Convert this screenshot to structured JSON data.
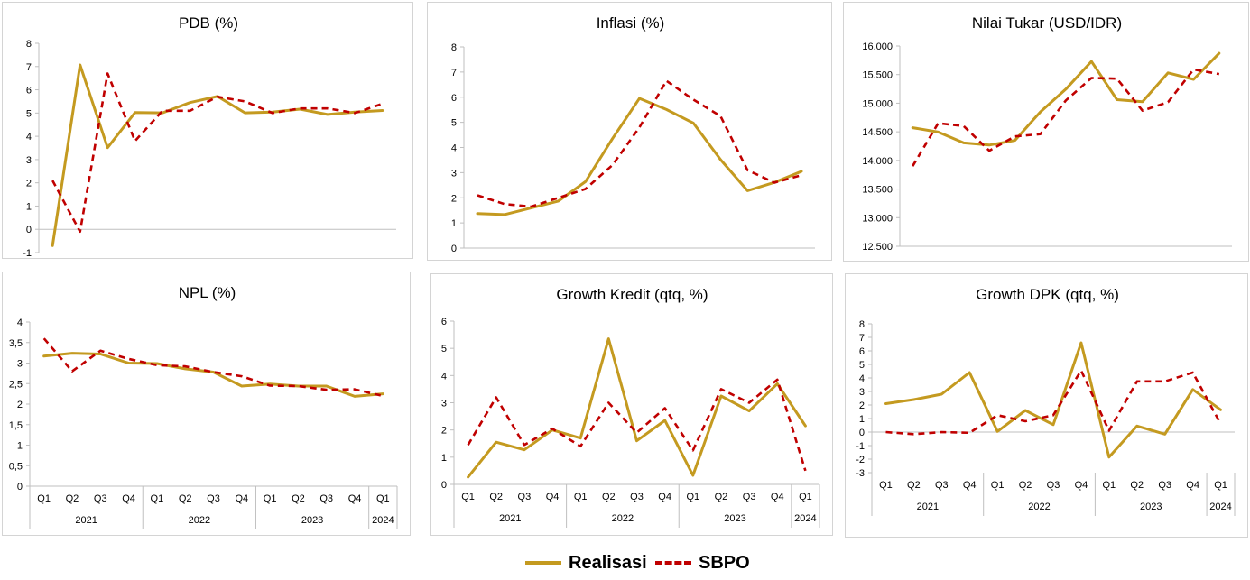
{
  "colors": {
    "realisasi": "#c49a20",
    "sbpo": "#c00000",
    "axis": "#bfbfbf",
    "text": "#000000"
  },
  "legend": {
    "realisasi": "Realisasi",
    "sbpo": "SBPO"
  },
  "chart_data": [
    {
      "id": "pdb",
      "type": "line",
      "title": "PDB (%)",
      "ylim": [
        -1,
        8
      ],
      "yticks": [
        -1,
        0,
        1,
        2,
        3,
        4,
        5,
        6,
        7,
        8
      ],
      "ytick_labels": [
        "-1",
        "0",
        "1",
        "2",
        "3",
        "4",
        "5",
        "6",
        "7",
        "8"
      ],
      "x_categories": [],
      "year_groups": [],
      "series": [
        {
          "name": "Realisasi",
          "values": [
            -0.7,
            7.07,
            3.51,
            5.02,
            5.01,
            5.45,
            5.72,
            5.01,
            5.04,
            5.17,
            4.94,
            5.04,
            5.11
          ]
        },
        {
          "name": "SBPO",
          "values": [
            2.1,
            -0.1,
            6.7,
            3.8,
            5.1,
            5.1,
            5.7,
            5.5,
            5.0,
            5.2,
            5.2,
            5.0,
            5.4
          ]
        }
      ]
    },
    {
      "id": "inflasi",
      "type": "line",
      "title": "Inflasi (%)",
      "ylim": [
        0,
        8
      ],
      "yticks": [
        0,
        1,
        2,
        3,
        4,
        5,
        6,
        7,
        8
      ],
      "ytick_labels": [
        "0",
        "1",
        "2",
        "3",
        "4",
        "5",
        "6",
        "7",
        "8"
      ],
      "x_categories": [],
      "year_groups": [],
      "series": [
        {
          "name": "Realisasi",
          "values": [
            1.37,
            1.33,
            1.6,
            1.87,
            2.64,
            4.35,
            5.95,
            5.51,
            4.97,
            3.52,
            2.28,
            2.61,
            3.05
          ]
        },
        {
          "name": "SBPO",
          "values": [
            2.1,
            1.75,
            1.65,
            2.0,
            2.35,
            3.3,
            4.8,
            6.65,
            5.9,
            5.25,
            3.1,
            2.6,
            2.9
          ]
        }
      ]
    },
    {
      "id": "nilai-tukar",
      "type": "line",
      "title": "Nilai Tukar (USD/IDR)",
      "ylim": [
        12500,
        16000
      ],
      "yticks": [
        12500,
        13000,
        13500,
        14000,
        14500,
        15000,
        15500,
        16000
      ],
      "ytick_labels": [
        "12.500",
        "13.000",
        "13.500",
        "14.000",
        "14.500",
        "15.000",
        "15.500",
        "16.000"
      ],
      "x_categories": [],
      "year_groups": [],
      "series": [
        {
          "name": "Realisasi",
          "values": [
            14572,
            14496,
            14307,
            14269,
            14349,
            14848,
            15247,
            15731,
            15062,
            15026,
            15530,
            15416,
            15873
          ]
        },
        {
          "name": "SBPO",
          "values": [
            13900,
            14650,
            14600,
            14170,
            14420,
            14460,
            15050,
            15440,
            15430,
            14870,
            15020,
            15590,
            15510
          ]
        }
      ]
    },
    {
      "id": "npl",
      "type": "line",
      "title": "NPL (%)",
      "ylim": [
        0,
        4
      ],
      "yticks": [
        0,
        0.5,
        1,
        1.5,
        2,
        2.5,
        3,
        3.5,
        4
      ],
      "ytick_labels": [
        "0",
        "0,5",
        "1",
        "1,5",
        "2",
        "2,5",
        "3",
        "3,5",
        "4"
      ],
      "x_categories": [
        "Q1",
        "Q2",
        "Q3",
        "Q4",
        "Q1",
        "Q2",
        "Q3",
        "Q4",
        "Q1",
        "Q2",
        "Q3",
        "Q4",
        "Q1"
      ],
      "year_groups": [
        {
          "label": "2021",
          "span": 4
        },
        {
          "label": "2022",
          "span": 4
        },
        {
          "label": "2023",
          "span": 4
        },
        {
          "label": "2024",
          "span": 1
        }
      ],
      "series": [
        {
          "name": "Realisasi",
          "values": [
            3.17,
            3.24,
            3.22,
            3.0,
            2.99,
            2.86,
            2.78,
            2.44,
            2.49,
            2.44,
            2.44,
            2.19,
            2.25
          ]
        },
        {
          "name": "SBPO",
          "values": [
            3.6,
            2.8,
            3.3,
            3.1,
            2.95,
            2.92,
            2.78,
            2.68,
            2.45,
            2.44,
            2.35,
            2.36,
            2.2
          ]
        }
      ]
    },
    {
      "id": "growth-kredit",
      "type": "line",
      "title": "Growth Kredit (qtq, %)",
      "ylim": [
        0,
        6
      ],
      "yticks": [
        0,
        1,
        2,
        3,
        4,
        5,
        6
      ],
      "ytick_labels": [
        "0",
        "1",
        "2",
        "3",
        "4",
        "5",
        "6"
      ],
      "x_categories": [
        "Q1",
        "Q2",
        "Q3",
        "Q4",
        "Q1",
        "Q2",
        "Q3",
        "Q4",
        "Q1",
        "Q2",
        "Q3",
        "Q4",
        "Q1"
      ],
      "year_groups": [
        {
          "label": "2021",
          "span": 4
        },
        {
          "label": "2022",
          "span": 4
        },
        {
          "label": "2023",
          "span": 4
        },
        {
          "label": "2024",
          "span": 1
        }
      ],
      "series": [
        {
          "name": "Realisasi",
          "values": [
            0.27,
            1.55,
            1.27,
            2.0,
            1.7,
            5.35,
            1.6,
            2.35,
            0.33,
            3.25,
            2.7,
            3.7,
            2.15
          ]
        },
        {
          "name": "SBPO",
          "values": [
            1.45,
            3.2,
            1.45,
            2.05,
            1.4,
            3.0,
            1.9,
            2.8,
            1.25,
            3.5,
            3.0,
            3.85,
            0.5
          ]
        }
      ]
    },
    {
      "id": "growth-dpk",
      "type": "line",
      "title": "Growth DPK (qtq, %)",
      "ylim": [
        -3,
        8
      ],
      "yticks": [
        -3,
        -2,
        -1,
        0,
        1,
        2,
        3,
        4,
        5,
        6,
        7,
        8
      ],
      "ytick_labels": [
        "-3",
        "-2",
        "-1",
        "0",
        "1",
        "2",
        "3",
        "4",
        "5",
        "6",
        "7",
        "8"
      ],
      "x_categories": [
        "Q1",
        "Q2",
        "Q3",
        "Q4",
        "Q1",
        "Q2",
        "Q3",
        "Q4",
        "Q1",
        "Q2",
        "Q3",
        "Q4",
        "Q1"
      ],
      "year_groups": [
        {
          "label": "2021",
          "span": 4
        },
        {
          "label": "2022",
          "span": 4
        },
        {
          "label": "2023",
          "span": 4
        },
        {
          "label": "2024",
          "span": 1
        }
      ],
      "series": [
        {
          "name": "Realisasi",
          "values": [
            2.1,
            2.4,
            2.8,
            4.4,
            0.05,
            1.6,
            0.55,
            6.6,
            -1.85,
            0.45,
            -0.15,
            3.15,
            1.65
          ]
        },
        {
          "name": "SBPO",
          "values": [
            0.0,
            -0.15,
            0.0,
            -0.05,
            1.25,
            0.8,
            1.25,
            4.55,
            0.1,
            3.75,
            3.75,
            4.4,
            0.6
          ]
        }
      ]
    }
  ]
}
